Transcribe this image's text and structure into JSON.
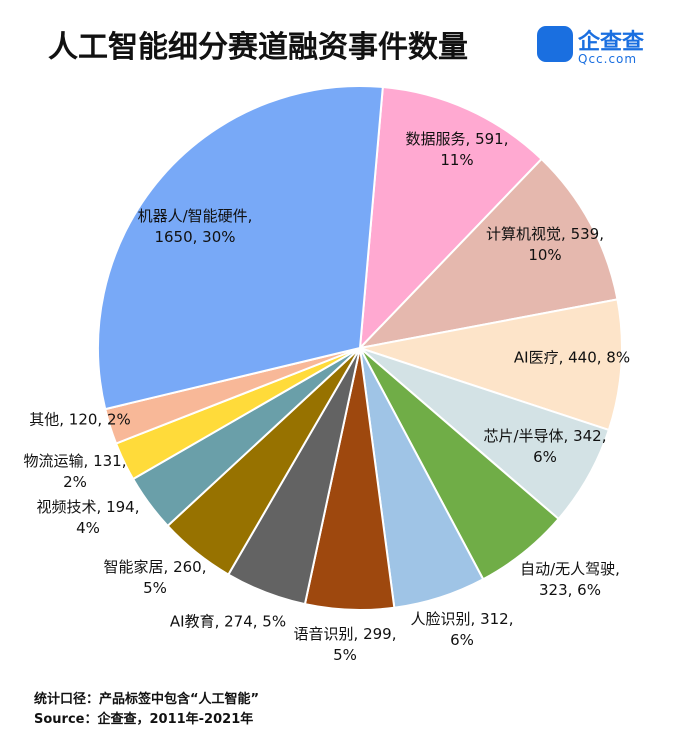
{
  "chart_data": {
    "type": "pie",
    "title": "人工智能细分赛道融资事件数量",
    "logo": "企查查",
    "logo_sub": "Qcc.com",
    "values": [
      591,
      539,
      440,
      342,
      323,
      312,
      299,
      274,
      260,
      194,
      131,
      120,
      1650
    ],
    "value_labels": [
      "数据服务, 591, 11%",
      "计算机视觉, 539, 10%",
      "AI医疗, 440, 8%",
      "芯片/半导体, 342, 6%",
      "自动/无人驾驶, 323, 6%",
      "人脸识别, 312, 6%",
      "语音识别, 299, 5%",
      "AI教育, 274, 5%",
      "智能家居, 260, 5%",
      "视频技术, 194, 4%",
      "物流运输, 131, 2%",
      "其他, 120, 2%",
      "机器人/智能硬件, 1650, 30%"
    ],
    "colors": [
      "#ffa9d1",
      "#e5b8ae",
      "#fde4c9",
      "#d3e2e5",
      "#70ad47",
      "#9fc4e6",
      "#9e480e",
      "#636363",
      "#977200",
      "#6a9fa9",
      "#ffdb3a",
      "#f8b898",
      "#78a9f7"
    ],
    "notes": [
      "统计口径：产品标签中包含“人工智能”",
      "Source：企查查，2011年-2021年"
    ]
  }
}
